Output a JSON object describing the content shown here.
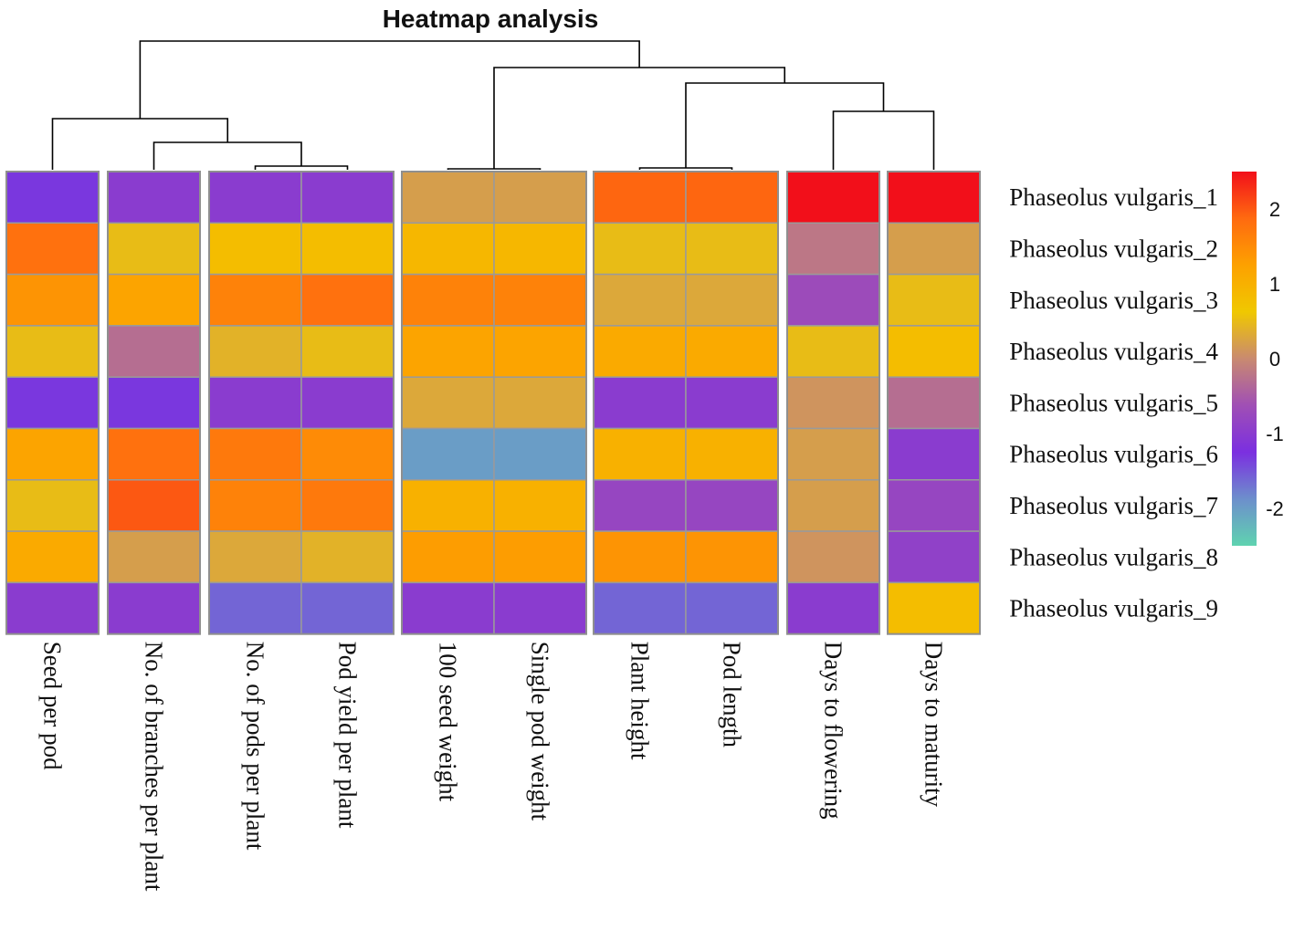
{
  "chart_data": {
    "type": "heatmap",
    "title": "Heatmap analysis",
    "rows": [
      "Phaseolus vulgaris_1",
      "Phaseolus vulgaris_2",
      "Phaseolus vulgaris_3",
      "Phaseolus vulgaris_4",
      "Phaseolus vulgaris_5",
      "Phaseolus vulgaris_6",
      "Phaseolus vulgaris_7",
      "Phaseolus vulgaris_8",
      "Phaseolus vulgaris_9"
    ],
    "columns": [
      "Seed per pod",
      "No. of branches per plant",
      "No. of pods per plant",
      "Pod yield per plant",
      "100 seed weight",
      "Single pod weight",
      "Plant height",
      "Pod length",
      "Days to flowering",
      "Days to maturity"
    ],
    "values": [
      [
        -1.3,
        -1.0,
        -1.0,
        -1.0,
        0.2,
        0.2,
        1.9,
        1.9,
        2.6,
        2.5
      ],
      [
        1.8,
        0.5,
        0.8,
        0.8,
        0.9,
        0.9,
        0.5,
        0.5,
        -0.2,
        0.2
      ],
      [
        1.4,
        1.2,
        1.6,
        1.8,
        1.6,
        1.6,
        0.3,
        0.3,
        -0.7,
        0.5
      ],
      [
        0.5,
        -0.3,
        0.4,
        0.5,
        1.2,
        1.2,
        1.1,
        1.1,
        0.5,
        0.8
      ],
      [
        -1.3,
        -1.3,
        -1.0,
        -1.0,
        0.3,
        0.3,
        -1.0,
        -1.0,
        0.1,
        -0.3
      ],
      [
        1.2,
        1.8,
        1.7,
        1.5,
        -2.0,
        -2.0,
        1.0,
        1.0,
        0.2,
        -1.0
      ],
      [
        0.5,
        2.0,
        1.6,
        1.7,
        1.0,
        1.0,
        -0.8,
        -0.8,
        0.2,
        -0.8
      ],
      [
        1.1,
        0.2,
        0.3,
        0.4,
        1.3,
        1.3,
        1.4,
        1.4,
        0.1,
        -0.9
      ],
      [
        -1.0,
        -1.0,
        -1.6,
        -1.6,
        -1.0,
        -1.0,
        -1.6,
        -1.6,
        -1.0,
        0.8
      ]
    ],
    "column_groups": [
      [
        0
      ],
      [
        1
      ],
      [
        2,
        3
      ],
      [
        4,
        5
      ],
      [
        6,
        7
      ],
      [
        8
      ],
      [
        9
      ]
    ],
    "colorbar": {
      "range": [
        -2.5,
        2.5
      ],
      "ticks": [
        2,
        1,
        0,
        -1,
        -2
      ],
      "tick_labels": [
        "2",
        "1",
        "0",
        "-1",
        "-2"
      ],
      "colors": [
        "#5fd3b0",
        "#6d8fcc",
        "#7b2fe0",
        "#a04fb5",
        "#c98a70",
        "#f0c800",
        "#fda100",
        "#ff6a10",
        "#f20f1a"
      ]
    },
    "dendrogram": "column clustering tree drawn above the columns",
    "legend_position": "right"
  }
}
